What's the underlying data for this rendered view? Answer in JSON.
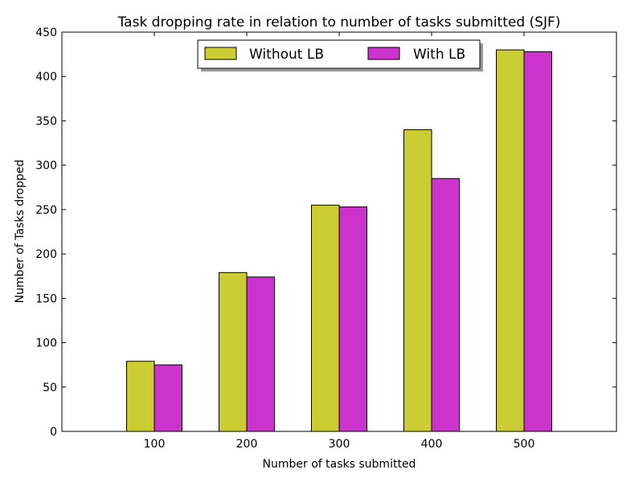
{
  "chart_data": {
    "type": "bar",
    "title": "Task dropping rate in relation to number of tasks submitted (SJF)",
    "xlabel": "Number of tasks submitted",
    "ylabel": "Number of Tasks dropped",
    "categories": [
      "100",
      "200",
      "300",
      "400",
      "500"
    ],
    "series": [
      {
        "name": "Without LB",
        "color": "#cccc33",
        "values": [
          79,
          179,
          255,
          340,
          430
        ]
      },
      {
        "name": "With LB",
        "color": "#cc33cc",
        "values": [
          75,
          174,
          253,
          285,
          428
        ]
      }
    ],
    "ylim": [
      0,
      450
    ],
    "yticks": [
      0,
      50,
      100,
      150,
      200,
      250,
      300,
      350,
      400,
      450
    ],
    "xlim": [
      0,
      600
    ],
    "grid": false,
    "legend": "top-center"
  }
}
